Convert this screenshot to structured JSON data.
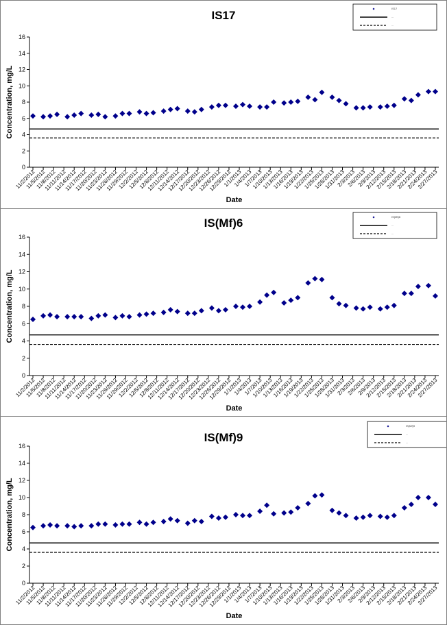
{
  "chart_data": [
    {
      "type": "scatter",
      "title": "IS17",
      "xlabel": "Date",
      "ylabel": "Concentration, mg/L",
      "ylim": [
        0,
        16
      ],
      "yticks": [
        0,
        2,
        4,
        6,
        8,
        10,
        12,
        14,
        16
      ],
      "grid": false,
      "legend_position": "top-right",
      "legend_entries": [
        "IS17",
        "...",
        "..."
      ],
      "xticks": [
        "11/2/2012",
        "11/5/2012",
        "11/8/2012",
        "11/11/2012",
        "11/14/2012",
        "11/17/2012",
        "11/20/2012",
        "11/23/2012",
        "11/26/2012",
        "11/29/2012",
        "12/2/2012",
        "12/5/2012",
        "12/8/2012",
        "12/11/2012",
        "12/14/2012",
        "12/17/2012",
        "12/20/2012",
        "12/23/2012",
        "12/26/2012",
        "12/29/2012",
        "1/1/2013",
        "1/4/2013",
        "1/7/2013",
        "1/10/2013",
        "1/13/2013",
        "1/16/2013",
        "1/19/2013",
        "1/22/2013",
        "1/25/2013",
        "1/28/2013",
        "1/31/2013",
        "2/3/2013",
        "2/6/2013",
        "2/9/2013",
        "2/12/2013",
        "2/15/2013",
        "2/18/2013",
        "2/21/2013",
        "2/24/2013",
        "2/27/2013"
      ],
      "series": [
        {
          "color": "#00008b",
          "marker": "diamond",
          "x": [
            "11/2/2012",
            "11/5/2012",
            "11/7/2012",
            "11/9/2012",
            "11/12/2012",
            "11/14/2012",
            "11/16/2012",
            "11/19/2012",
            "11/21/2012",
            "11/23/2012",
            "11/26/2012",
            "11/28/2012",
            "11/30/2012",
            "12/3/2012",
            "12/5/2012",
            "12/7/2012",
            "12/10/2012",
            "12/12/2012",
            "12/14/2012",
            "12/17/2012",
            "12/19/2012",
            "12/21/2012",
            "12/24/2012",
            "12/26/2012",
            "12/28/2012",
            "12/31/2012",
            "1/2/2013",
            "1/4/2013",
            "1/7/2013",
            "1/9/2013",
            "1/11/2013",
            "1/14/2013",
            "1/16/2013",
            "1/18/2013",
            "1/21/2013",
            "1/23/2013",
            "1/25/2013",
            "1/28/2013",
            "1/30/2013",
            "2/1/2013",
            "2/4/2013",
            "2/6/2013",
            "2/8/2013",
            "2/11/2013",
            "2/13/2013",
            "2/15/2013",
            "2/18/2013",
            "2/20/2013",
            "2/22/2013",
            "2/25/2013",
            "2/27/2013"
          ],
          "y": [
            6.3,
            6.2,
            6.3,
            6.5,
            6.2,
            6.4,
            6.6,
            6.4,
            6.5,
            6.2,
            6.3,
            6.6,
            6.6,
            6.8,
            6.6,
            6.7,
            6.9,
            7.1,
            7.2,
            6.9,
            6.8,
            7.1,
            7.4,
            7.6,
            7.6,
            7.5,
            7.7,
            7.5,
            7.4,
            7.4,
            8.0,
            7.9,
            8.0,
            8.1,
            8.6,
            8.3,
            9.2,
            8.6,
            8.2,
            7.8,
            7.3,
            7.3,
            7.4,
            7.4,
            7.5,
            7.6,
            8.4,
            8.2,
            8.9,
            9.3,
            9.3
          ]
        }
      ],
      "reference_lines": [
        {
          "style": "solid",
          "y": 4.7
        },
        {
          "style": "dashed",
          "y": 3.6
        }
      ]
    },
    {
      "type": "scatter",
      "title": "IS(Mf)6",
      "xlabel": "Date",
      "ylabel": "Concentration, mg/L",
      "ylim": [
        0,
        16
      ],
      "yticks": [
        0,
        2,
        4,
        6,
        8,
        10,
        12,
        14,
        16
      ],
      "grid": false,
      "legend_position": "top-right",
      "legend_entries": [
        "IS(Mf)6",
        "...",
        "..."
      ],
      "xticks": [
        "11/2/2012",
        "11/5/2012",
        "11/8/2012",
        "11/11/2012",
        "11/14/2012",
        "11/17/2012",
        "11/20/2012",
        "11/23/2012",
        "11/26/2012",
        "11/29/2012",
        "12/2/2012",
        "12/5/2012",
        "12/8/2012",
        "12/11/2012",
        "12/14/2012",
        "12/17/2012",
        "12/20/2012",
        "12/23/2012",
        "12/26/2012",
        "12/29/2012",
        "1/1/2013",
        "1/4/2013",
        "1/7/2013",
        "1/10/2013",
        "1/13/2013",
        "1/16/2013",
        "1/19/2013",
        "1/22/2013",
        "1/25/2013",
        "1/28/2013",
        "1/31/2013",
        "2/3/2013",
        "2/6/2013",
        "2/9/2013",
        "2/12/2013",
        "2/15/2013",
        "2/18/2013",
        "2/21/2013",
        "2/24/2013",
        "2/27/2013"
      ],
      "series": [
        {
          "color": "#00008b",
          "marker": "diamond",
          "x": [
            "11/2/2012",
            "11/5/2012",
            "11/7/2012",
            "11/9/2012",
            "11/12/2012",
            "11/14/2012",
            "11/16/2012",
            "11/19/2012",
            "11/21/2012",
            "11/23/2012",
            "11/26/2012",
            "11/28/2012",
            "11/30/2012",
            "12/3/2012",
            "12/5/2012",
            "12/7/2012",
            "12/10/2012",
            "12/12/2012",
            "12/14/2012",
            "12/17/2012",
            "12/19/2012",
            "12/21/2012",
            "12/24/2012",
            "12/26/2012",
            "12/28/2012",
            "12/31/2012",
            "1/2/2013",
            "1/4/2013",
            "1/7/2013",
            "1/9/2013",
            "1/11/2013",
            "1/14/2013",
            "1/16/2013",
            "1/18/2013",
            "1/21/2013",
            "1/23/2013",
            "1/25/2013",
            "1/28/2013",
            "1/30/2013",
            "2/1/2013",
            "2/4/2013",
            "2/6/2013",
            "2/8/2013",
            "2/11/2013",
            "2/13/2013",
            "2/15/2013",
            "2/18/2013",
            "2/20/2013",
            "2/22/2013",
            "2/25/2013",
            "2/27/2013"
          ],
          "y": [
            6.5,
            6.9,
            7.0,
            6.8,
            6.8,
            6.8,
            6.8,
            6.6,
            6.9,
            7.0,
            6.7,
            6.9,
            6.8,
            7.0,
            7.1,
            7.2,
            7.3,
            7.6,
            7.4,
            7.2,
            7.2,
            7.5,
            7.8,
            7.5,
            7.6,
            8.0,
            7.9,
            8.0,
            8.5,
            9.3,
            9.6,
            8.4,
            8.7,
            9.0,
            10.7,
            11.2,
            11.1,
            9.0,
            8.3,
            8.1,
            7.8,
            7.7,
            7.9,
            7.7,
            7.9,
            8.1,
            9.5,
            9.5,
            10.3,
            10.4,
            9.2
          ]
        }
      ],
      "reference_lines": [
        {
          "style": "solid",
          "y": 4.7
        },
        {
          "style": "dashed",
          "y": 3.6
        }
      ]
    },
    {
      "type": "scatter",
      "title": "IS(Mf)9",
      "xlabel": "Date",
      "ylabel": "Concentration, mg/L",
      "ylim": [
        0,
        16
      ],
      "yticks": [
        0,
        2,
        4,
        6,
        8,
        10,
        12,
        14,
        16
      ],
      "grid": false,
      "legend_position": "top-right",
      "legend_entries": [
        "IS(Mf)9",
        "...",
        "..."
      ],
      "xticks": [
        "11/2/2012",
        "11/5/2012",
        "11/8/2012",
        "11/11/2012",
        "11/14/2012",
        "11/17/2012",
        "11/20/2012",
        "11/23/2012",
        "11/26/2012",
        "11/29/2012",
        "12/2/2012",
        "12/5/2012",
        "12/8/2012",
        "12/11/2012",
        "12/14/2012",
        "12/17/2012",
        "12/20/2012",
        "12/23/2012",
        "12/26/2012",
        "12/29/2012",
        "1/1/2013",
        "1/4/2013",
        "1/7/2013",
        "1/10/2013",
        "1/13/2013",
        "1/16/2013",
        "1/19/2013",
        "1/22/2013",
        "1/25/2013",
        "1/28/2013",
        "1/31/2013",
        "2/3/2013",
        "2/6/2013",
        "2/9/2013",
        "2/12/2013",
        "2/15/2013",
        "2/18/2013",
        "2/21/2013",
        "2/24/2013",
        "2/27/2013"
      ],
      "series": [
        {
          "color": "#00008b",
          "marker": "diamond",
          "x": [
            "11/2/2012",
            "11/5/2012",
            "11/7/2012",
            "11/9/2012",
            "11/12/2012",
            "11/14/2012",
            "11/16/2012",
            "11/19/2012",
            "11/21/2012",
            "11/23/2012",
            "11/26/2012",
            "11/28/2012",
            "11/30/2012",
            "12/3/2012",
            "12/5/2012",
            "12/7/2012",
            "12/10/2012",
            "12/12/2012",
            "12/14/2012",
            "12/17/2012",
            "12/19/2012",
            "12/21/2012",
            "12/24/2012",
            "12/26/2012",
            "12/28/2012",
            "12/31/2012",
            "1/2/2013",
            "1/4/2013",
            "1/7/2013",
            "1/9/2013",
            "1/11/2013",
            "1/14/2013",
            "1/16/2013",
            "1/18/2013",
            "1/21/2013",
            "1/23/2013",
            "1/25/2013",
            "1/28/2013",
            "1/30/2013",
            "2/1/2013",
            "2/4/2013",
            "2/6/2013",
            "2/8/2013",
            "2/11/2013",
            "2/13/2013",
            "2/15/2013",
            "2/18/2013",
            "2/20/2013",
            "2/22/2013",
            "2/25/2013",
            "2/27/2013"
          ],
          "y": [
            6.5,
            6.7,
            6.8,
            6.7,
            6.7,
            6.6,
            6.7,
            6.7,
            6.9,
            6.9,
            6.8,
            6.9,
            6.9,
            7.1,
            6.9,
            7.1,
            7.2,
            7.5,
            7.3,
            7.0,
            7.3,
            7.2,
            7.8,
            7.6,
            7.7,
            8.0,
            7.9,
            7.9,
            8.4,
            9.1,
            8.1,
            8.2,
            8.3,
            8.8,
            9.3,
            10.2,
            10.3,
            8.5,
            8.2,
            7.9,
            7.6,
            7.7,
            7.9,
            7.8,
            7.7,
            7.9,
            8.8,
            9.2,
            10.0,
            10.0,
            9.2
          ]
        }
      ],
      "reference_lines": [
        {
          "style": "solid",
          "y": 4.7
        },
        {
          "style": "dashed",
          "y": 3.6
        }
      ]
    }
  ]
}
